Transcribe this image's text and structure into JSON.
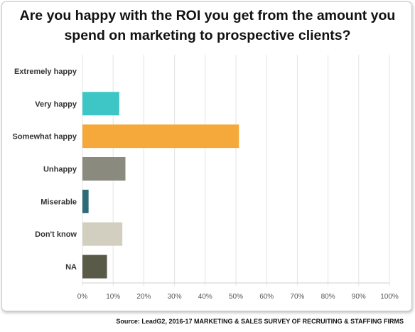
{
  "chart_data": {
    "type": "bar",
    "orientation": "horizontal",
    "title_lines": [
      "Are you happy with the ROI you get from the amount you",
      "spend on marketing to prospective clients?"
    ],
    "categories": [
      "Extremely happy",
      "Very happy",
      "Somewhat happy",
      "Unhappy",
      "Miserable",
      "Don't know",
      "NA"
    ],
    "values": [
      0,
      12,
      51,
      14,
      2,
      13,
      8
    ],
    "colors": [
      "#3a9fb0",
      "#3ec6c6",
      "#f4a93a",
      "#8a8a7e",
      "#2d6b78",
      "#d2cfc0",
      "#5a5a48"
    ],
    "xlim": [
      0,
      100
    ],
    "xticks": [
      "0%",
      "10%",
      "20%",
      "30%",
      "40%",
      "50%",
      "60%",
      "70%",
      "80%",
      "90%",
      "100%"
    ],
    "xtick_values": [
      0,
      10,
      20,
      30,
      40,
      50,
      60,
      70,
      80,
      90,
      100
    ],
    "grid": "vertical",
    "legend": "none"
  },
  "source_text": "Source: LeadG2, 2016-17 MARKETING & SALES SURVEY OF RECRUITING & STAFFING FIRMS"
}
